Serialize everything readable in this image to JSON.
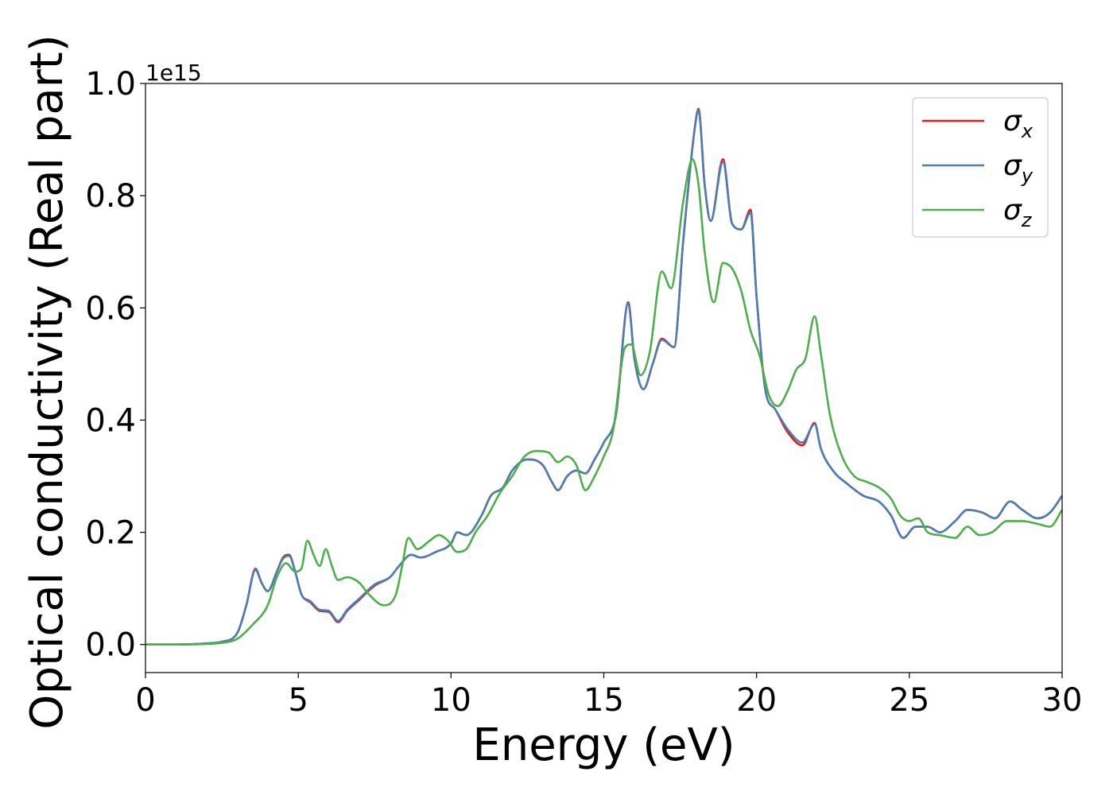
{
  "chart_data": {
    "type": "line",
    "xlabel": "Energy (eV)",
    "ylabel": "Optical conductivity (Real part)",
    "y_offset_label": "1e15",
    "xlim": [
      0,
      30
    ],
    "ylim": [
      -0.05,
      1.0
    ],
    "x_ticks": [
      0,
      5,
      10,
      15,
      20,
      25,
      30
    ],
    "x_tick_labels": [
      "0",
      "5",
      "10",
      "15",
      "20",
      "25",
      "30"
    ],
    "y_ticks": [
      0.0,
      0.2,
      0.4,
      0.6,
      0.8,
      1.0
    ],
    "y_tick_labels": [
      "0.0",
      "0.2",
      "0.4",
      "0.6",
      "0.8",
      "1.0"
    ],
    "grid": false,
    "legend_position": "top-right",
    "series": [
      {
        "name": "σx",
        "symbol": "σ",
        "subscript": "x",
        "color": "#e41a1c",
        "points": [
          [
            0,
            0.0
          ],
          [
            1,
            0.0
          ],
          [
            2,
            0.002
          ],
          [
            2.5,
            0.005
          ],
          [
            3,
            0.02
          ],
          [
            3.3,
            0.07
          ],
          [
            3.6,
            0.135
          ],
          [
            3.8,
            0.11
          ],
          [
            4.0,
            0.095
          ],
          [
            4.3,
            0.13
          ],
          [
            4.5,
            0.155
          ],
          [
            4.7,
            0.16
          ],
          [
            4.9,
            0.13
          ],
          [
            5.1,
            0.09
          ],
          [
            5.4,
            0.075
          ],
          [
            5.7,
            0.06
          ],
          [
            6.0,
            0.058
          ],
          [
            6.3,
            0.04
          ],
          [
            6.6,
            0.06
          ],
          [
            7.0,
            0.08
          ],
          [
            7.5,
            0.105
          ],
          [
            8.0,
            0.12
          ],
          [
            8.3,
            0.14
          ],
          [
            8.7,
            0.16
          ],
          [
            9.0,
            0.155
          ],
          [
            9.5,
            0.165
          ],
          [
            10.0,
            0.18
          ],
          [
            10.2,
            0.2
          ],
          [
            10.5,
            0.195
          ],
          [
            11.0,
            0.23
          ],
          [
            11.3,
            0.265
          ],
          [
            11.7,
            0.28
          ],
          [
            12.0,
            0.31
          ],
          [
            12.5,
            0.33
          ],
          [
            13.0,
            0.32
          ],
          [
            13.3,
            0.29
          ],
          [
            13.5,
            0.275
          ],
          [
            13.8,
            0.3
          ],
          [
            14.1,
            0.31
          ],
          [
            14.4,
            0.305
          ],
          [
            14.7,
            0.33
          ],
          [
            15.0,
            0.36
          ],
          [
            15.4,
            0.41
          ],
          [
            15.8,
            0.61
          ],
          [
            16.0,
            0.51
          ],
          [
            16.3,
            0.455
          ],
          [
            16.6,
            0.5
          ],
          [
            16.9,
            0.545
          ],
          [
            17.3,
            0.53
          ],
          [
            17.6,
            0.72
          ],
          [
            18.0,
            0.93
          ],
          [
            18.1,
            0.955
          ],
          [
            18.3,
            0.82
          ],
          [
            18.5,
            0.755
          ],
          [
            18.9,
            0.865
          ],
          [
            19.2,
            0.75
          ],
          [
            19.5,
            0.74
          ],
          [
            19.8,
            0.775
          ],
          [
            20.0,
            0.62
          ],
          [
            20.3,
            0.45
          ],
          [
            20.6,
            0.42
          ],
          [
            21.0,
            0.38
          ],
          [
            21.5,
            0.355
          ],
          [
            21.9,
            0.395
          ],
          [
            22.1,
            0.35
          ],
          [
            22.5,
            0.31
          ],
          [
            23.0,
            0.285
          ],
          [
            23.5,
            0.265
          ],
          [
            24.0,
            0.255
          ],
          [
            24.4,
            0.23
          ],
          [
            24.8,
            0.19
          ],
          [
            25.2,
            0.21
          ],
          [
            25.6,
            0.21
          ],
          [
            26.0,
            0.2
          ],
          [
            26.5,
            0.22
          ],
          [
            26.9,
            0.24
          ],
          [
            27.4,
            0.235
          ],
          [
            27.8,
            0.225
          ],
          [
            28.3,
            0.255
          ],
          [
            28.7,
            0.24
          ],
          [
            29.2,
            0.225
          ],
          [
            29.6,
            0.235
          ],
          [
            30.0,
            0.265
          ]
        ]
      },
      {
        "name": "σy",
        "symbol": "σ",
        "subscript": "y",
        "color": "#4a7fb5",
        "points": [
          [
            0,
            0.0
          ],
          [
            1,
            0.0
          ],
          [
            2,
            0.002
          ],
          [
            2.5,
            0.005
          ],
          [
            3,
            0.02
          ],
          [
            3.3,
            0.07
          ],
          [
            3.6,
            0.133
          ],
          [
            3.8,
            0.11
          ],
          [
            4.0,
            0.095
          ],
          [
            4.3,
            0.13
          ],
          [
            4.5,
            0.153
          ],
          [
            4.7,
            0.158
          ],
          [
            4.9,
            0.13
          ],
          [
            5.1,
            0.09
          ],
          [
            5.4,
            0.077
          ],
          [
            5.7,
            0.062
          ],
          [
            6.0,
            0.06
          ],
          [
            6.3,
            0.042
          ],
          [
            6.6,
            0.062
          ],
          [
            7.0,
            0.082
          ],
          [
            7.5,
            0.107
          ],
          [
            8.0,
            0.12
          ],
          [
            8.3,
            0.14
          ],
          [
            8.7,
            0.16
          ],
          [
            9.0,
            0.155
          ],
          [
            9.5,
            0.165
          ],
          [
            10.0,
            0.18
          ],
          [
            10.2,
            0.2
          ],
          [
            10.5,
            0.195
          ],
          [
            11.0,
            0.23
          ],
          [
            11.3,
            0.265
          ],
          [
            11.7,
            0.28
          ],
          [
            12.0,
            0.31
          ],
          [
            12.5,
            0.33
          ],
          [
            13.0,
            0.32
          ],
          [
            13.3,
            0.29
          ],
          [
            13.5,
            0.275
          ],
          [
            13.8,
            0.3
          ],
          [
            14.1,
            0.31
          ],
          [
            14.4,
            0.305
          ],
          [
            14.7,
            0.33
          ],
          [
            15.0,
            0.36
          ],
          [
            15.4,
            0.41
          ],
          [
            15.8,
            0.608
          ],
          [
            16.0,
            0.51
          ],
          [
            16.3,
            0.455
          ],
          [
            16.6,
            0.5
          ],
          [
            16.9,
            0.543
          ],
          [
            17.3,
            0.53
          ],
          [
            17.6,
            0.72
          ],
          [
            18.0,
            0.93
          ],
          [
            18.1,
            0.953
          ],
          [
            18.3,
            0.82
          ],
          [
            18.5,
            0.755
          ],
          [
            18.9,
            0.86
          ],
          [
            19.2,
            0.75
          ],
          [
            19.5,
            0.74
          ],
          [
            19.8,
            0.77
          ],
          [
            20.0,
            0.62
          ],
          [
            20.3,
            0.45
          ],
          [
            20.6,
            0.42
          ],
          [
            21.0,
            0.385
          ],
          [
            21.5,
            0.36
          ],
          [
            21.9,
            0.393
          ],
          [
            22.1,
            0.35
          ],
          [
            22.5,
            0.31
          ],
          [
            23.0,
            0.285
          ],
          [
            23.5,
            0.265
          ],
          [
            24.0,
            0.255
          ],
          [
            24.4,
            0.23
          ],
          [
            24.8,
            0.19
          ],
          [
            25.2,
            0.21
          ],
          [
            25.6,
            0.21
          ],
          [
            26.0,
            0.2
          ],
          [
            26.5,
            0.22
          ],
          [
            26.9,
            0.24
          ],
          [
            27.4,
            0.235
          ],
          [
            27.8,
            0.225
          ],
          [
            28.3,
            0.255
          ],
          [
            28.7,
            0.24
          ],
          [
            29.2,
            0.225
          ],
          [
            29.6,
            0.235
          ],
          [
            30.0,
            0.265
          ]
        ]
      },
      {
        "name": "σz",
        "symbol": "σ",
        "subscript": "z",
        "color": "#4daf4a",
        "points": [
          [
            0,
            0.0
          ],
          [
            1,
            0.0
          ],
          [
            2,
            0.001
          ],
          [
            2.5,
            0.003
          ],
          [
            3,
            0.01
          ],
          [
            3.5,
            0.035
          ],
          [
            4.0,
            0.07
          ],
          [
            4.3,
            0.12
          ],
          [
            4.6,
            0.145
          ],
          [
            4.9,
            0.13
          ],
          [
            5.1,
            0.135
          ],
          [
            5.3,
            0.185
          ],
          [
            5.5,
            0.16
          ],
          [
            5.7,
            0.14
          ],
          [
            5.9,
            0.17
          ],
          [
            6.1,
            0.14
          ],
          [
            6.3,
            0.115
          ],
          [
            6.6,
            0.12
          ],
          [
            7.0,
            0.11
          ],
          [
            7.3,
            0.09
          ],
          [
            7.8,
            0.07
          ],
          [
            8.2,
            0.09
          ],
          [
            8.4,
            0.14
          ],
          [
            8.6,
            0.19
          ],
          [
            8.9,
            0.17
          ],
          [
            9.3,
            0.185
          ],
          [
            9.6,
            0.195
          ],
          [
            9.9,
            0.185
          ],
          [
            10.2,
            0.165
          ],
          [
            10.5,
            0.17
          ],
          [
            10.8,
            0.2
          ],
          [
            11.2,
            0.23
          ],
          [
            11.6,
            0.27
          ],
          [
            12.0,
            0.3
          ],
          [
            12.4,
            0.335
          ],
          [
            12.8,
            0.345
          ],
          [
            13.2,
            0.342
          ],
          [
            13.5,
            0.325
          ],
          [
            13.8,
            0.335
          ],
          [
            14.1,
            0.32
          ],
          [
            14.4,
            0.275
          ],
          [
            14.7,
            0.3
          ],
          [
            15.0,
            0.335
          ],
          [
            15.3,
            0.38
          ],
          [
            15.7,
            0.53
          ],
          [
            15.9,
            0.535
          ],
          [
            16.2,
            0.48
          ],
          [
            16.5,
            0.52
          ],
          [
            16.9,
            0.665
          ],
          [
            17.2,
            0.635
          ],
          [
            17.6,
            0.79
          ],
          [
            17.9,
            0.865
          ],
          [
            18.1,
            0.82
          ],
          [
            18.3,
            0.7
          ],
          [
            18.6,
            0.61
          ],
          [
            18.9,
            0.68
          ],
          [
            19.2,
            0.67
          ],
          [
            19.5,
            0.63
          ],
          [
            19.8,
            0.56
          ],
          [
            20.1,
            0.515
          ],
          [
            20.4,
            0.445
          ],
          [
            20.7,
            0.425
          ],
          [
            21.0,
            0.45
          ],
          [
            21.3,
            0.49
          ],
          [
            21.6,
            0.51
          ],
          [
            21.9,
            0.585
          ],
          [
            22.1,
            0.52
          ],
          [
            22.4,
            0.41
          ],
          [
            22.8,
            0.335
          ],
          [
            23.2,
            0.3
          ],
          [
            23.6,
            0.29
          ],
          [
            24.0,
            0.28
          ],
          [
            24.4,
            0.26
          ],
          [
            24.7,
            0.23
          ],
          [
            25.0,
            0.22
          ],
          [
            25.3,
            0.225
          ],
          [
            25.6,
            0.2
          ],
          [
            26.0,
            0.195
          ],
          [
            26.5,
            0.19
          ],
          [
            26.9,
            0.21
          ],
          [
            27.3,
            0.195
          ],
          [
            27.7,
            0.2
          ],
          [
            28.2,
            0.22
          ],
          [
            28.7,
            0.22
          ],
          [
            29.2,
            0.215
          ],
          [
            29.6,
            0.21
          ],
          [
            30.0,
            0.24
          ]
        ]
      }
    ]
  }
}
